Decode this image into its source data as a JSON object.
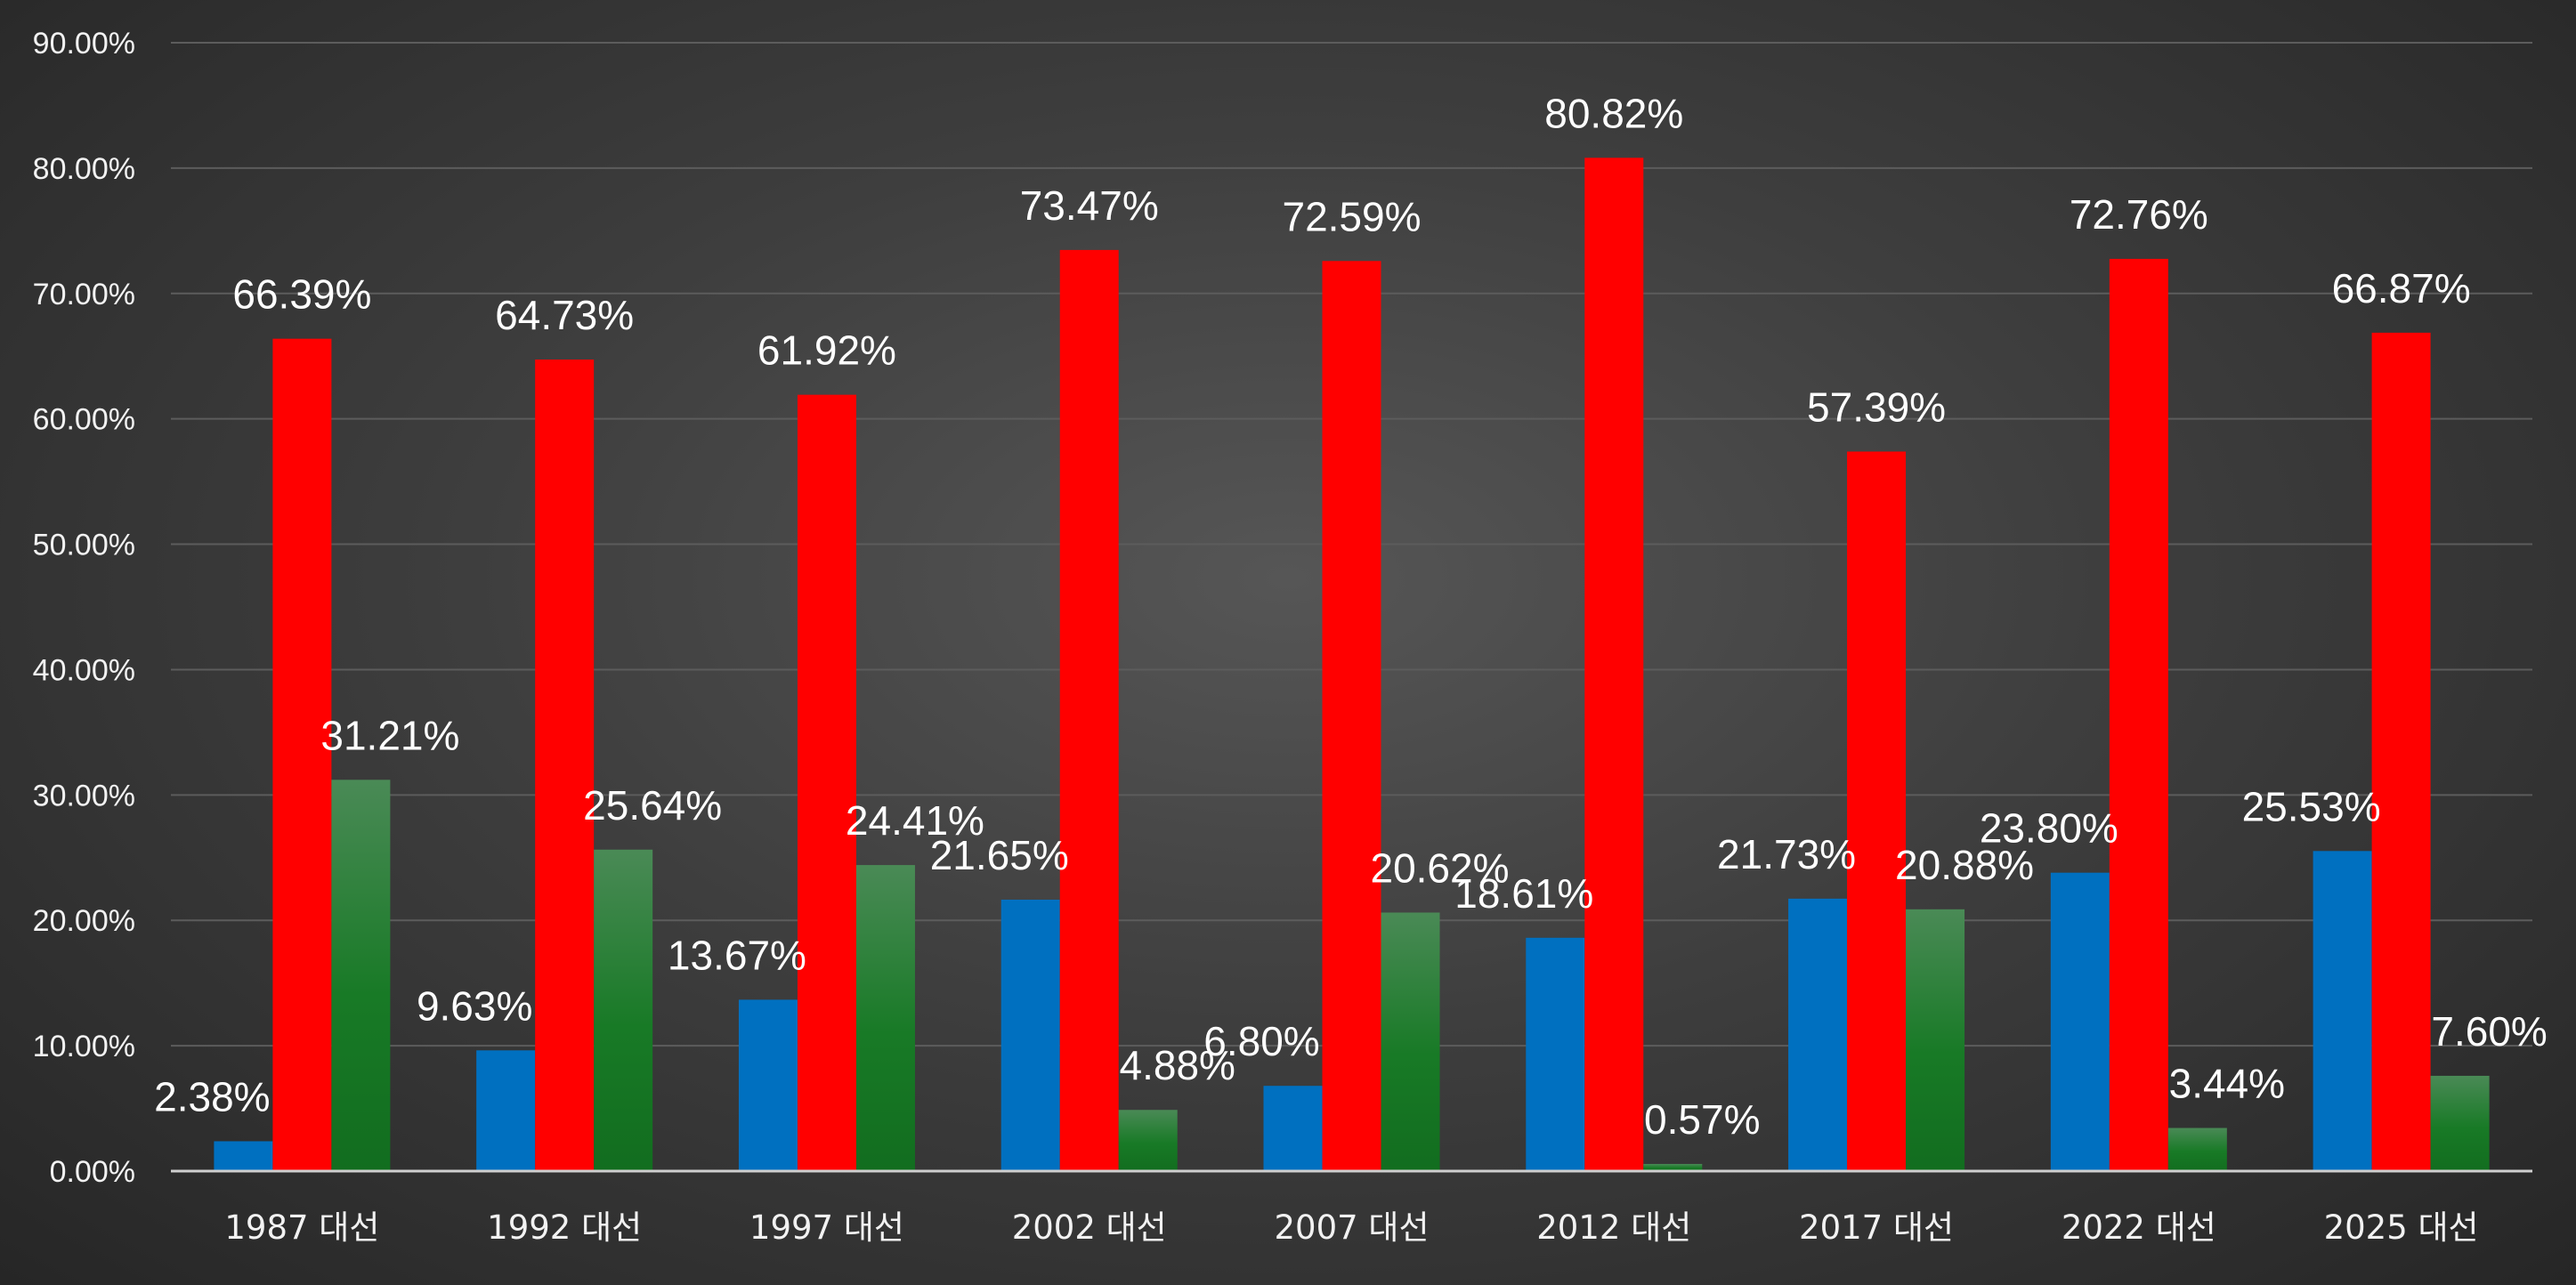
{
  "chart_data": {
    "type": "bar",
    "categories": [
      "1987 대선",
      "1992 대선",
      "1997 대선",
      "2002 대선",
      "2007 대선",
      "2012 대선",
      "2017 대선",
      "2022 대선",
      "2025 대선"
    ],
    "series": [
      {
        "color": "#0070c0",
        "values": [
          2.38,
          9.63,
          13.67,
          21.65,
          6.8,
          18.61,
          21.73,
          23.8,
          25.53
        ],
        "labels": [
          "2.38%",
          "9.63%",
          "13.67%",
          "21.65%",
          "6.80%",
          "18.61%",
          "21.73%",
          "23.80%",
          "25.53%"
        ]
      },
      {
        "color": "#ff0000",
        "values": [
          66.39,
          64.73,
          61.92,
          73.47,
          72.59,
          80.82,
          57.39,
          72.76,
          66.87
        ],
        "labels": [
          "66.39%",
          "64.73%",
          "61.92%",
          "73.47%",
          "72.59%",
          "80.82%",
          "57.39%",
          "72.76%",
          "66.87%"
        ]
      },
      {
        "color": "#1a7a2a",
        "values": [
          31.21,
          25.64,
          24.41,
          4.88,
          20.62,
          0.57,
          20.88,
          3.44,
          7.6
        ],
        "labels": [
          "31.21%",
          "25.64%",
          "24.41%",
          "4.88%",
          "20.62%",
          "0.57%",
          "20.88%",
          "3.44%",
          "7.60%"
        ]
      }
    ],
    "y_ticks": [
      "0.00%",
      "10.00%",
      "20.00%",
      "30.00%",
      "40.00%",
      "50.00%",
      "60.00%",
      "70.00%",
      "80.00%",
      "90.00%"
    ],
    "ylim": [
      0,
      90
    ],
    "grid": true,
    "legend": "none"
  }
}
